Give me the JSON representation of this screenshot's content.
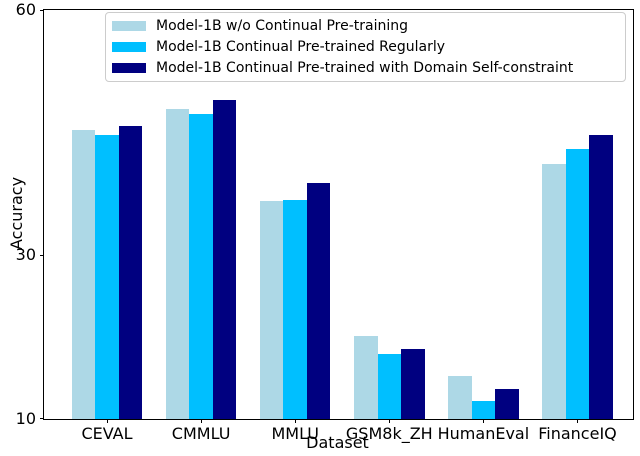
{
  "figure": {
    "background": "#ffffff",
    "axis_color": "#000000",
    "text_color": "#000000"
  },
  "chart_data": {
    "type": "bar",
    "title": "",
    "xlabel": "Dataset",
    "ylabel": "Accuracy",
    "ylim": [
      10,
      60
    ],
    "yticks": [
      10,
      30,
      60
    ],
    "grid": false,
    "legend_position": "upper left inside plot",
    "legend_border_color": "#cccccc",
    "categories": [
      "CEVAL",
      "CMMLU",
      "MMLU",
      "GSM8k_ZH",
      "HumanEval",
      "FinanceIQ"
    ],
    "series": [
      {
        "name": "Model-1B w/o Continual Pre-training",
        "color": "#ADD8E6",
        "values": [
          45.3,
          47.9,
          36.6,
          20.2,
          15.3,
          41.2
        ]
      },
      {
        "name": "Model-1B Continual Pre-trained Regularly",
        "color": "#00BFFF",
        "values": [
          44.7,
          47.3,
          36.8,
          18.0,
          12.2,
          43.0
        ]
      },
      {
        "name": "Model-1B Continual Pre-trained with Domain Self-constraint",
        "color": "#000080",
        "values": [
          45.8,
          49.0,
          38.9,
          18.5,
          13.7,
          44.7
        ]
      }
    ]
  }
}
